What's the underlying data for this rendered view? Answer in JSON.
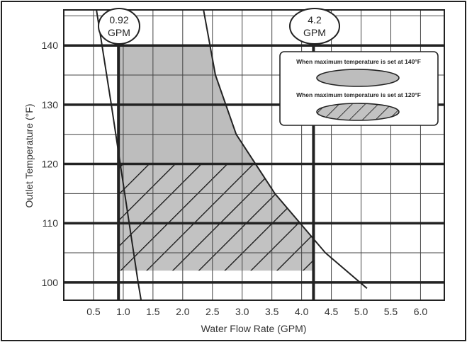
{
  "chart_data": {
    "type": "area",
    "xlabel": "Water Flow Rate (GPM)",
    "ylabel": "Outlet Temperature (°F)",
    "xlim": [
      0.0,
      6.4
    ],
    "ylim": [
      97,
      146
    ],
    "x_ticks": [
      "0.5",
      "1.0",
      "1.5",
      "2.0",
      "2.5",
      "3.0",
      "3.5",
      "4.0",
      "4.5",
      "5.0",
      "5.5",
      "6.0"
    ],
    "y_ticks": [
      "100",
      "110",
      "120",
      "130",
      "140"
    ],
    "grid": true,
    "minimum_flow": {
      "value": 0.92,
      "label_value": "0.92",
      "label_unit": "GPM"
    },
    "maximum_flow": {
      "value": 4.2,
      "label_value": "4.2",
      "label_unit": "GPM"
    },
    "reference_temperatures": [
      120,
      140
    ],
    "boundary_curves": [
      {
        "points": [
          [
            0.55,
            146
          ],
          [
            0.8,
            130
          ],
          [
            0.95,
            120
          ],
          [
            1.1,
            110
          ],
          [
            1.25,
            100
          ],
          [
            1.3,
            97
          ]
        ]
      },
      {
        "points": [
          [
            2.35,
            146
          ],
          [
            2.55,
            135
          ],
          [
            2.9,
            125
          ],
          [
            3.55,
            115
          ],
          [
            4.4,
            105
          ],
          [
            5.1,
            99
          ]
        ]
      }
    ],
    "regions": [
      {
        "temperature_setting": 140,
        "fill": "solid",
        "color": "#bdbdbd",
        "legend": "When maximum temperature is set at 140°F",
        "x_min": 0.92,
        "x_max": 4.2,
        "y_min": 120,
        "y_max": 140
      },
      {
        "temperature_setting": 120,
        "fill": "hatched",
        "color": "#c2c2c2",
        "legend": "When maximum temperature is set at 120°F",
        "x_min": 0.92,
        "x_max": 4.2,
        "y_min": 102,
        "y_max": 120
      }
    ],
    "legend_position": "top-right"
  }
}
